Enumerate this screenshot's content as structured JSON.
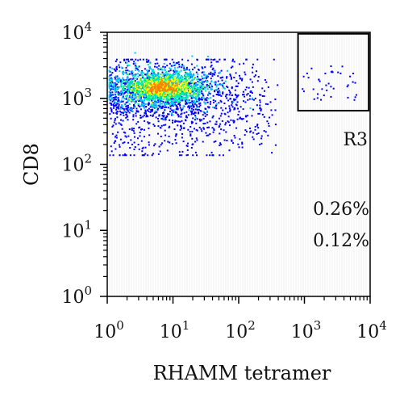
{
  "chart_data": {
    "type": "scatter",
    "xlabel": "RHAMM tetramer",
    "ylabel": "CD8",
    "x_scale": "log",
    "y_scale": "log",
    "xlim": [
      1,
      10000
    ],
    "ylim": [
      1,
      10000
    ],
    "x_ticks": [
      {
        "value": 1,
        "base": "10",
        "exp": "0"
      },
      {
        "value": 10,
        "base": "10",
        "exp": "1"
      },
      {
        "value": 100,
        "base": "10",
        "exp": "2"
      },
      {
        "value": 1000,
        "base": "10",
        "exp": "3"
      },
      {
        "value": 10000,
        "base": "10",
        "exp": "4"
      }
    ],
    "y_ticks": [
      {
        "value": 1,
        "base": "10",
        "exp": "0"
      },
      {
        "value": 10,
        "base": "10",
        "exp": "1"
      },
      {
        "value": 100,
        "base": "10",
        "exp": "2"
      },
      {
        "value": 1000,
        "base": "10",
        "exp": "3"
      },
      {
        "value": 10000,
        "base": "10",
        "exp": "4"
      }
    ],
    "density_core": {
      "x": 12,
      "y": 1500
    },
    "gate": {
      "name": "R3",
      "x_range": [
        800,
        9500
      ],
      "y_range": [
        650,
        9500
      ]
    },
    "annotations": [
      "0.26%",
      "0.12%"
    ],
    "colormap": [
      "#0000ff",
      "#00c8ff",
      "#00ff80",
      "#ffff00",
      "#ff8000"
    ]
  }
}
